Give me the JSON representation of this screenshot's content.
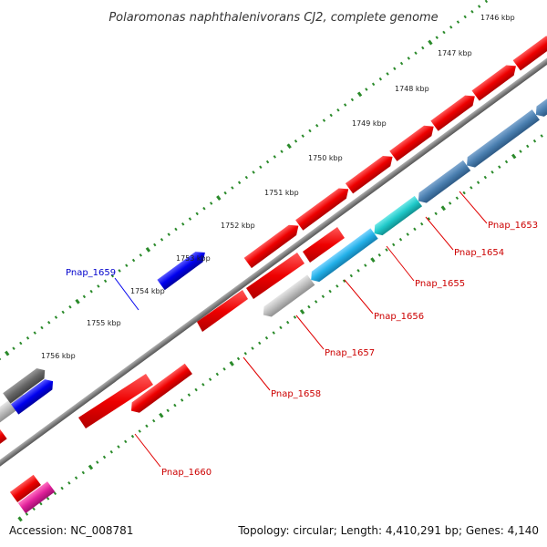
{
  "title": "Polaromonas naphthalenivorans CJ2, complete genome",
  "footer": {
    "accession": "Accession: NC_008781",
    "info": "Topology: circular; Length: 4,410,291 bp; Genes: 4,140"
  },
  "ticks": [
    "1746 kbp",
    "1747 kbp",
    "1748 kbp",
    "1749 kbp",
    "1750 kbp",
    "1751 kbp",
    "1752 kbp",
    "1753 kbp",
    "1754 kbp",
    "1755 kbp",
    "1756 kbp"
  ],
  "gene_labels": [
    {
      "id": "Pnap_1653",
      "color": "#cc0000"
    },
    {
      "id": "Pnap_1654",
      "color": "#cc0000"
    },
    {
      "id": "Pnap_1655",
      "color": "#cc0000"
    },
    {
      "id": "Pnap_1656",
      "color": "#cc0000"
    },
    {
      "id": "Pnap_1657",
      "color": "#cc0000"
    },
    {
      "id": "Pnap_1658",
      "color": "#cc0000"
    },
    {
      "id": "Pnap_1659",
      "color": "#0000cc"
    },
    {
      "id": "Pnap_1660",
      "color": "#cc0000"
    }
  ],
  "colors": {
    "cds_red": "#ee0000",
    "cds_blue": "#0000ee",
    "steel_blue": "#4a7fb0",
    "cyan": "#1ec8c8",
    "sky": "#22b0e8",
    "light_gray": "#bdbdbd",
    "dark_gray": "#666666",
    "magenta": "#e0209a",
    "backbone": "#808080",
    "tick_green": "#2a8a2a"
  }
}
